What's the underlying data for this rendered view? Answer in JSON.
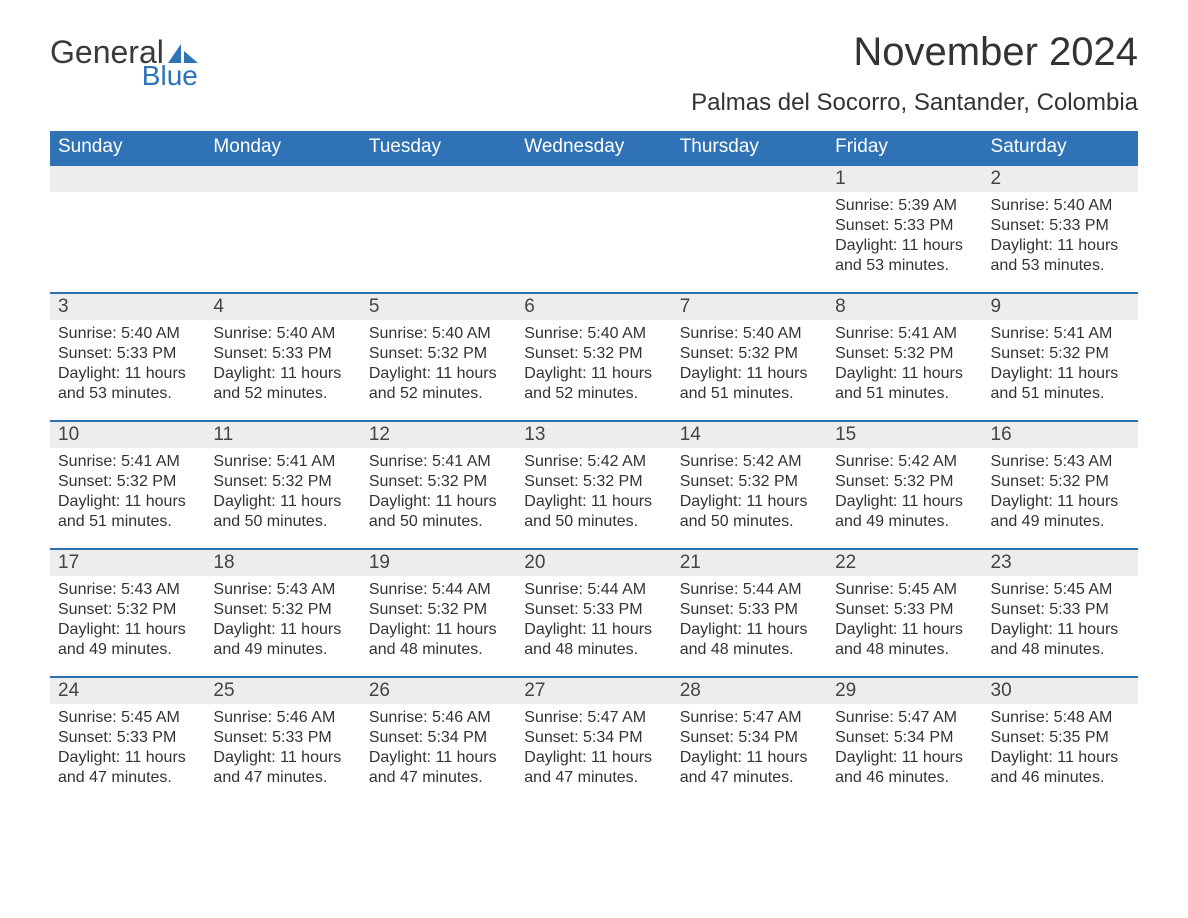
{
  "logo": {
    "text_general": "General",
    "text_blue": "Blue",
    "shape_color": "#2f73b6"
  },
  "header": {
    "month_title": "November 2024",
    "location": "Palmas del Socorro, Santander, Colombia"
  },
  "calendar": {
    "header_bg": "#2f73b6",
    "header_text_color": "#ffffff",
    "row_border_color": "#2f73b6",
    "daynum_bg": "#ededed",
    "body_text_color": "#333333",
    "font_family": "Arial",
    "day_headers": [
      "Sunday",
      "Monday",
      "Tuesday",
      "Wednesday",
      "Thursday",
      "Friday",
      "Saturday"
    ],
    "weeks": [
      [
        null,
        null,
        null,
        null,
        null,
        {
          "n": "1",
          "sunrise": "5:39 AM",
          "sunset": "5:33 PM",
          "daylight": "11 hours and 53 minutes."
        },
        {
          "n": "2",
          "sunrise": "5:40 AM",
          "sunset": "5:33 PM",
          "daylight": "11 hours and 53 minutes."
        }
      ],
      [
        {
          "n": "3",
          "sunrise": "5:40 AM",
          "sunset": "5:33 PM",
          "daylight": "11 hours and 53 minutes."
        },
        {
          "n": "4",
          "sunrise": "5:40 AM",
          "sunset": "5:33 PM",
          "daylight": "11 hours and 52 minutes."
        },
        {
          "n": "5",
          "sunrise": "5:40 AM",
          "sunset": "5:32 PM",
          "daylight": "11 hours and 52 minutes."
        },
        {
          "n": "6",
          "sunrise": "5:40 AM",
          "sunset": "5:32 PM",
          "daylight": "11 hours and 52 minutes."
        },
        {
          "n": "7",
          "sunrise": "5:40 AM",
          "sunset": "5:32 PM",
          "daylight": "11 hours and 51 minutes."
        },
        {
          "n": "8",
          "sunrise": "5:41 AM",
          "sunset": "5:32 PM",
          "daylight": "11 hours and 51 minutes."
        },
        {
          "n": "9",
          "sunrise": "5:41 AM",
          "sunset": "5:32 PM",
          "daylight": "11 hours and 51 minutes."
        }
      ],
      [
        {
          "n": "10",
          "sunrise": "5:41 AM",
          "sunset": "5:32 PM",
          "daylight": "11 hours and 51 minutes."
        },
        {
          "n": "11",
          "sunrise": "5:41 AM",
          "sunset": "5:32 PM",
          "daylight": "11 hours and 50 minutes."
        },
        {
          "n": "12",
          "sunrise": "5:41 AM",
          "sunset": "5:32 PM",
          "daylight": "11 hours and 50 minutes."
        },
        {
          "n": "13",
          "sunrise": "5:42 AM",
          "sunset": "5:32 PM",
          "daylight": "11 hours and 50 minutes."
        },
        {
          "n": "14",
          "sunrise": "5:42 AM",
          "sunset": "5:32 PM",
          "daylight": "11 hours and 50 minutes."
        },
        {
          "n": "15",
          "sunrise": "5:42 AM",
          "sunset": "5:32 PM",
          "daylight": "11 hours and 49 minutes."
        },
        {
          "n": "16",
          "sunrise": "5:43 AM",
          "sunset": "5:32 PM",
          "daylight": "11 hours and 49 minutes."
        }
      ],
      [
        {
          "n": "17",
          "sunrise": "5:43 AM",
          "sunset": "5:32 PM",
          "daylight": "11 hours and 49 minutes."
        },
        {
          "n": "18",
          "sunrise": "5:43 AM",
          "sunset": "5:32 PM",
          "daylight": "11 hours and 49 minutes."
        },
        {
          "n": "19",
          "sunrise": "5:44 AM",
          "sunset": "5:32 PM",
          "daylight": "11 hours and 48 minutes."
        },
        {
          "n": "20",
          "sunrise": "5:44 AM",
          "sunset": "5:33 PM",
          "daylight": "11 hours and 48 minutes."
        },
        {
          "n": "21",
          "sunrise": "5:44 AM",
          "sunset": "5:33 PM",
          "daylight": "11 hours and 48 minutes."
        },
        {
          "n": "22",
          "sunrise": "5:45 AM",
          "sunset": "5:33 PM",
          "daylight": "11 hours and 48 minutes."
        },
        {
          "n": "23",
          "sunrise": "5:45 AM",
          "sunset": "5:33 PM",
          "daylight": "11 hours and 48 minutes."
        }
      ],
      [
        {
          "n": "24",
          "sunrise": "5:45 AM",
          "sunset": "5:33 PM",
          "daylight": "11 hours and 47 minutes."
        },
        {
          "n": "25",
          "sunrise": "5:46 AM",
          "sunset": "5:33 PM",
          "daylight": "11 hours and 47 minutes."
        },
        {
          "n": "26",
          "sunrise": "5:46 AM",
          "sunset": "5:34 PM",
          "daylight": "11 hours and 47 minutes."
        },
        {
          "n": "27",
          "sunrise": "5:47 AM",
          "sunset": "5:34 PM",
          "daylight": "11 hours and 47 minutes."
        },
        {
          "n": "28",
          "sunrise": "5:47 AM",
          "sunset": "5:34 PM",
          "daylight": "11 hours and 47 minutes."
        },
        {
          "n": "29",
          "sunrise": "5:47 AM",
          "sunset": "5:34 PM",
          "daylight": "11 hours and 46 minutes."
        },
        {
          "n": "30",
          "sunrise": "5:48 AM",
          "sunset": "5:35 PM",
          "daylight": "11 hours and 46 minutes."
        }
      ]
    ],
    "labels": {
      "sunrise": "Sunrise:",
      "sunset": "Sunset:",
      "daylight": "Daylight:"
    }
  }
}
